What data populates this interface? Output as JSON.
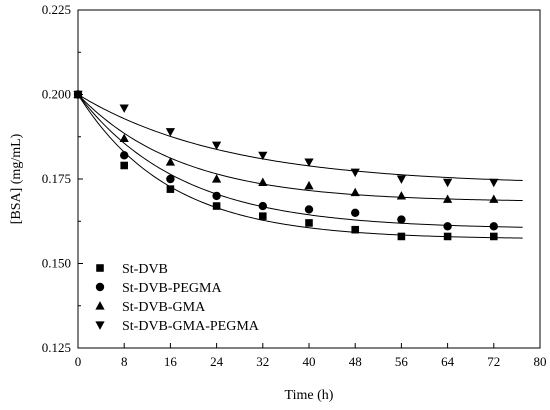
{
  "chart_data": {
    "type": "scatter",
    "title": "",
    "xlabel": "Time (h)",
    "ylabel": "[BSA] (mg/mL)",
    "xlim": [
      0,
      80
    ],
    "ylim": [
      0.125,
      0.225
    ],
    "xticks": [
      0,
      8,
      16,
      24,
      32,
      40,
      48,
      56,
      64,
      72,
      80
    ],
    "yticks": [
      0.125,
      0.15,
      0.175,
      0.2,
      0.225
    ],
    "ytick_labels": [
      "0.125",
      "0.150",
      "0.175",
      "0.200",
      "0.225"
    ],
    "grid": false,
    "legend_position": "bottom-left",
    "fit_curves": true,
    "series": [
      {
        "name": "St-DVB",
        "marker": "square",
        "x": [
          0,
          8,
          16,
          24,
          32,
          40,
          48,
          56,
          64,
          72
        ],
        "y": [
          0.2,
          0.179,
          0.172,
          0.167,
          0.164,
          0.162,
          0.16,
          0.158,
          0.158,
          0.158
        ]
      },
      {
        "name": "St-DVB-PEGMA",
        "marker": "circle",
        "x": [
          0,
          8,
          16,
          24,
          32,
          40,
          48,
          56,
          64,
          72
        ],
        "y": [
          0.2,
          0.182,
          0.175,
          0.17,
          0.167,
          0.166,
          0.165,
          0.163,
          0.161,
          0.161
        ]
      },
      {
        "name": "St-DVB-GMA",
        "marker": "triangle-up",
        "x": [
          0,
          8,
          16,
          24,
          32,
          40,
          48,
          56,
          64,
          72
        ],
        "y": [
          0.2,
          0.187,
          0.18,
          0.175,
          0.174,
          0.173,
          0.171,
          0.17,
          0.169,
          0.169
        ]
      },
      {
        "name": "St-DVB-GMA-PEGMA",
        "marker": "triangle-down",
        "x": [
          0,
          8,
          16,
          24,
          32,
          40,
          48,
          56,
          64,
          72
        ],
        "y": [
          0.2,
          0.196,
          0.189,
          0.185,
          0.182,
          0.18,
          0.177,
          0.175,
          0.174,
          0.174
        ]
      }
    ]
  }
}
